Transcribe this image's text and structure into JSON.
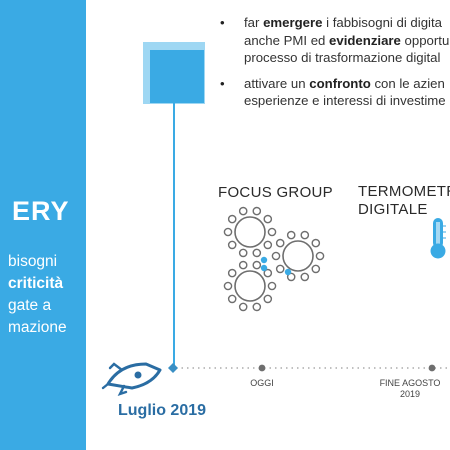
{
  "sidebar": {
    "title_partial": "ERY",
    "lines": [
      "bisogni",
      "criticità",
      "gate a",
      "mazione"
    ]
  },
  "bullets": [
    {
      "lines": [
        [
          {
            "t": "far "
          },
          {
            "t": "emergere",
            "b": true
          },
          {
            "t": " i fabbisogni di digita"
          }
        ],
        [
          {
            "t": "anche PMI ed "
          },
          {
            "t": "evidenziare",
            "b": true
          },
          {
            "t": " opportu"
          }
        ],
        [
          {
            "t": "processo di trasformazione digital"
          }
        ]
      ]
    },
    {
      "lines": [
        [
          {
            "t": "attivare un "
          },
          {
            "t": "confronto",
            "b": true
          },
          {
            "t": " con le azien"
          }
        ],
        [
          {
            "t": "esperienze e interessi di investime"
          }
        ]
      ]
    }
  ],
  "focus_group": {
    "label": "FOCUS GROUP",
    "icon": "people-circle-icon"
  },
  "termometro": {
    "label_line1": "TERMOMETRO",
    "label_line2": "DIGITALE",
    "icon": "thermometer-icon"
  },
  "timeline": {
    "start_label": "Luglio 2019",
    "oggi_label": "OGGI",
    "fine_agosto_line1": "FINE AGOSTO",
    "fine_agosto_line2": "2019",
    "start_icon": "rocket-icon"
  },
  "colors": {
    "primary_blue": "#3aaae4",
    "light_blue": "#9ed7f3",
    "dark_blue": "#2a6da3",
    "gray": "#6e6e6e"
  }
}
